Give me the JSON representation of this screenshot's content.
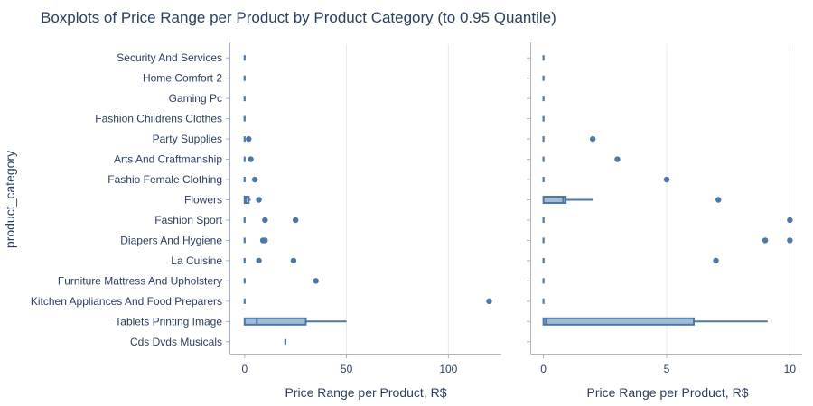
{
  "chart_data": {
    "type": "boxplot",
    "title": "Boxplots of Price Range per Product by Product Category (to 0.95 Quantile)",
    "ylabel": "product_category",
    "categories": [
      "Security And Services",
      "Home Comfort 2",
      "Gaming Pc",
      "Fashion Childrens Clothes",
      "Party Supplies",
      "Arts And Craftmanship",
      "Fashio Female Clothing",
      "Flowers",
      "Fashion Sport",
      "Diapers And Hygiene",
      "La Cuisine",
      "Furniture Mattress And Upholstery",
      "Kitchen Appliances And Food Preparers",
      "Tablets Printing Image",
      "Cds Dvds Musicals"
    ],
    "panels": [
      {
        "xlabel": "Price Range per Product, R$",
        "xlim": [
          -7,
          126
        ],
        "xticks": [
          0,
          50,
          100
        ],
        "boxes": [
          {
            "category": "Security And Services",
            "q1": 0,
            "median": 0,
            "q3": 0,
            "lower": 0,
            "upper": 0,
            "outliers": []
          },
          {
            "category": "Home Comfort 2",
            "q1": 0,
            "median": 0,
            "q3": 0,
            "lower": 0,
            "upper": 0,
            "outliers": []
          },
          {
            "category": "Gaming Pc",
            "q1": 0,
            "median": 0,
            "q3": 0,
            "lower": 0,
            "upper": 0,
            "outliers": []
          },
          {
            "category": "Fashion Childrens Clothes",
            "q1": 0,
            "median": 0,
            "q3": 0,
            "lower": 0,
            "upper": 0,
            "outliers": []
          },
          {
            "category": "Party Supplies",
            "q1": 0,
            "median": 0,
            "q3": 0,
            "lower": 0,
            "upper": 0,
            "outliers": [
              2
            ]
          },
          {
            "category": "Arts And Craftmanship",
            "q1": 0,
            "median": 0,
            "q3": 0,
            "lower": 0,
            "upper": 0,
            "outliers": [
              3
            ]
          },
          {
            "category": "Fashio Female Clothing",
            "q1": 0,
            "median": 0,
            "q3": 0,
            "lower": 0,
            "upper": 0,
            "outliers": [
              5
            ]
          },
          {
            "category": "Flowers",
            "q1": 0,
            "median": 0.5,
            "q3": 2,
            "lower": 0,
            "upper": 3,
            "outliers": [
              7
            ]
          },
          {
            "category": "Fashion Sport",
            "q1": 0,
            "median": 0,
            "q3": 0,
            "lower": 0,
            "upper": 0,
            "outliers": [
              10,
              25
            ]
          },
          {
            "category": "Diapers And Hygiene",
            "q1": 0,
            "median": 0,
            "q3": 0,
            "lower": 0,
            "upper": 0,
            "outliers": [
              9,
              10
            ]
          },
          {
            "category": "La Cuisine",
            "q1": 0,
            "median": 0,
            "q3": 0,
            "lower": 0,
            "upper": 0,
            "outliers": [
              7,
              24
            ]
          },
          {
            "category": "Furniture Mattress And Upholstery",
            "q1": 0,
            "median": 0,
            "q3": 0,
            "lower": 0,
            "upper": 0,
            "outliers": [
              35
            ]
          },
          {
            "category": "Kitchen Appliances And Food Preparers",
            "q1": 0,
            "median": 0,
            "q3": 0,
            "lower": 0,
            "upper": 0,
            "outliers": [
              120
            ]
          },
          {
            "category": "Tablets Printing Image",
            "q1": 0,
            "median": 6,
            "q3": 30,
            "lower": 0,
            "upper": 50,
            "outliers": []
          },
          {
            "category": "Cds Dvds Musicals",
            "q1": 20,
            "median": 20,
            "q3": 20,
            "lower": 20,
            "upper": 20,
            "outliers": []
          }
        ]
      },
      {
        "xlabel": "Price Range per Product, R$",
        "xlim": [
          -0.5,
          10.5
        ],
        "xticks": [
          0,
          5,
          10
        ],
        "boxes": [
          {
            "category": "Security And Services",
            "q1": 0,
            "median": 0,
            "q3": 0,
            "lower": 0,
            "upper": 0,
            "outliers": []
          },
          {
            "category": "Home Comfort 2",
            "q1": 0,
            "median": 0,
            "q3": 0,
            "lower": 0,
            "upper": 0,
            "outliers": []
          },
          {
            "category": "Gaming Pc",
            "q1": 0,
            "median": 0,
            "q3": 0,
            "lower": 0,
            "upper": 0,
            "outliers": []
          },
          {
            "category": "Fashion Childrens Clothes",
            "q1": 0,
            "median": 0,
            "q3": 0,
            "lower": 0,
            "upper": 0,
            "outliers": []
          },
          {
            "category": "Party Supplies",
            "q1": 0,
            "median": 0,
            "q3": 0,
            "lower": 0,
            "upper": 0,
            "outliers": [
              2
            ]
          },
          {
            "category": "Arts And Craftmanship",
            "q1": 0,
            "median": 0,
            "q3": 0,
            "lower": 0,
            "upper": 0,
            "outliers": [
              3
            ]
          },
          {
            "category": "Fashio Female Clothing",
            "q1": 0,
            "median": 0,
            "q3": 0,
            "lower": 0,
            "upper": 0,
            "outliers": [
              5
            ]
          },
          {
            "category": "Flowers",
            "q1": 0,
            "median": 0.8,
            "q3": 0.9,
            "lower": 0,
            "upper": 2,
            "outliers": [
              7.1
            ]
          },
          {
            "category": "Fashion Sport",
            "q1": 0,
            "median": 0,
            "q3": 0,
            "lower": 0,
            "upper": 0,
            "outliers": [
              10
            ]
          },
          {
            "category": "Diapers And Hygiene",
            "q1": 0,
            "median": 0,
            "q3": 0,
            "lower": 0,
            "upper": 0,
            "outliers": [
              9,
              10
            ]
          },
          {
            "category": "La Cuisine",
            "q1": 0,
            "median": 0,
            "q3": 0,
            "lower": 0,
            "upper": 0,
            "outliers": [
              7
            ]
          },
          {
            "category": "Furniture Mattress And Upholstery",
            "q1": 0,
            "median": 0,
            "q3": 0,
            "lower": 0,
            "upper": 0,
            "outliers": []
          },
          {
            "category": "Kitchen Appliances And Food Preparers",
            "q1": 0,
            "median": 0,
            "q3": 0,
            "lower": 0,
            "upper": 0,
            "outliers": []
          },
          {
            "category": "Tablets Printing Image",
            "q1": 0,
            "median": 0.1,
            "q3": 6.1,
            "lower": 0,
            "upper": 9.1,
            "outliers": []
          }
        ]
      }
    ],
    "colors": {
      "box_line": "#4c78a8",
      "box_fill": "#a4bbd5",
      "grid": "#e5e8ec",
      "text": "#2a3f5f"
    }
  }
}
